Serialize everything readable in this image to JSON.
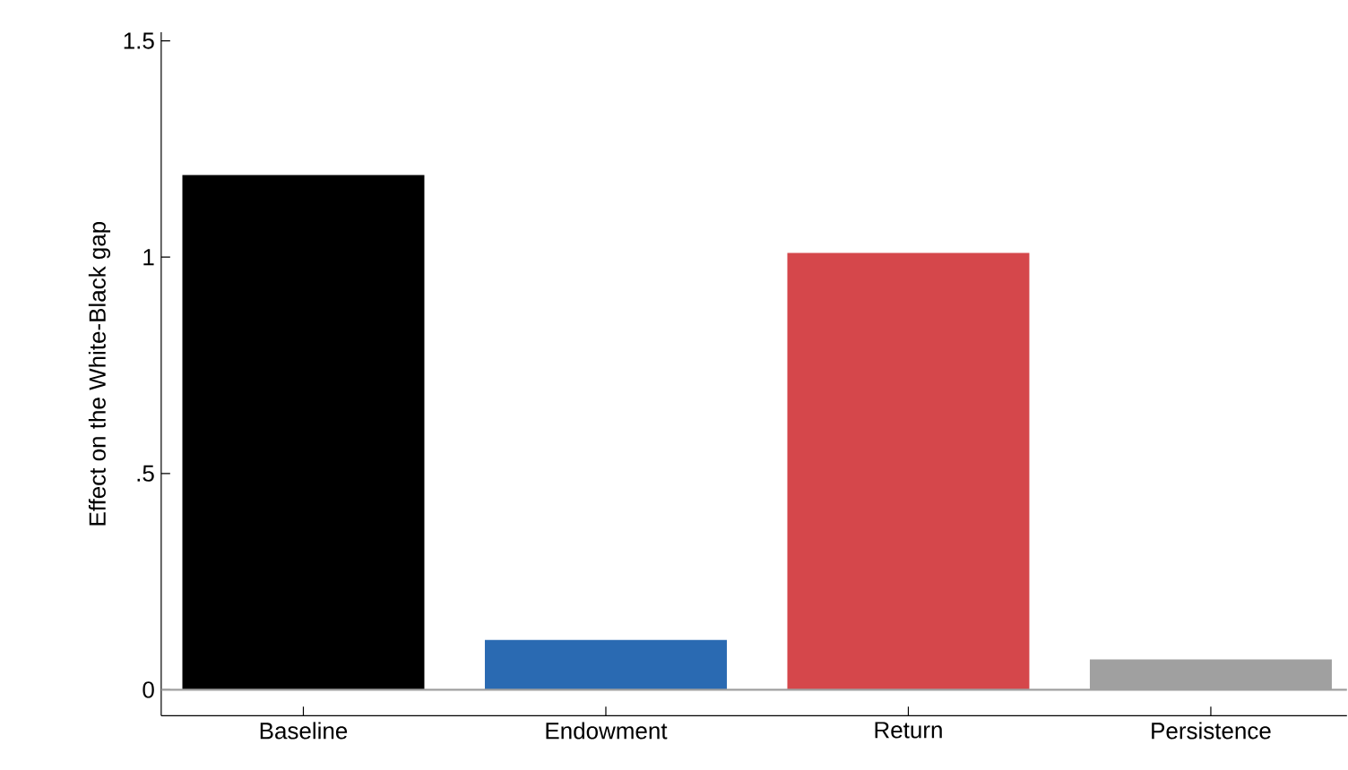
{
  "chart_data": {
    "type": "bar",
    "ylabel": "Effect on the White-Black gap",
    "categories": [
      "Baseline",
      "Endowment",
      "Return",
      "Persistence"
    ],
    "values": [
      1.19,
      0.115,
      1.01,
      0.07
    ],
    "colors": [
      "#000000",
      "#2a6ab2",
      "#d5474b",
      "#a0a0a0"
    ],
    "ylim": [
      -0.06,
      1.52
    ],
    "yticks": [
      0,
      {
        "value": 0.5,
        "label": ".5"
      },
      1,
      {
        "value": 1.5,
        "label": "1.5"
      }
    ],
    "ref_lines": [
      {
        "axis": "y",
        "value": 0,
        "color": "#a0a0a0"
      }
    ]
  }
}
